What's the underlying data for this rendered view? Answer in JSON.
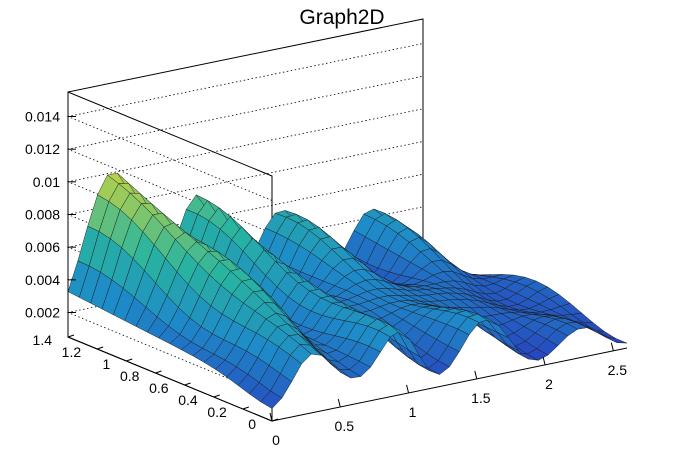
{
  "chart_data": {
    "type": "surface",
    "title": "Graph2D",
    "xlabel": "",
    "ylabel": "",
    "zlabel": "",
    "xlim": [
      0,
      2.6
    ],
    "ylim": [
      0,
      1.4
    ],
    "zlim": [
      0.0005,
      0.0155
    ],
    "x_ticks": [
      0,
      0.5,
      1,
      1.5,
      2,
      2.5
    ],
    "x_tick_labels": [
      "0",
      "0.5",
      "1",
      "1.5",
      "2",
      "2.5"
    ],
    "y_ticks": [
      0,
      0.2,
      0.4,
      0.6,
      0.8,
      1,
      1.2,
      1.4
    ],
    "y_tick_labels": [
      "0",
      "0.2",
      "0.4",
      "0.6",
      "0.8",
      "1",
      "1.2",
      "1.4"
    ],
    "z_ticks": [
      0.002,
      0.004,
      0.006,
      0.008,
      0.01,
      0.012,
      0.014
    ],
    "z_tick_labels": [
      "0.002",
      "0.004",
      "0.006",
      "0.008",
      "0.01",
      "0.012",
      "0.014"
    ],
    "grid": true,
    "colormap": "viridis-like",
    "colors": {
      "low": "#3b4cc0",
      "mid": "#2aa198",
      "high": "#f9e020"
    }
  }
}
